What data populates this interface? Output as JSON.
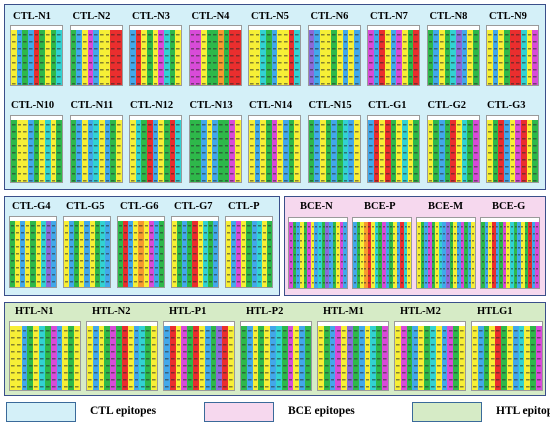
{
  "colors": {
    "ctl_bg": "#d4f0f8",
    "bce_bg": "#f6d8ee",
    "htl_bg": "#d6ebc6",
    "panel_border": "#3a4f8a",
    "residue_palette": {
      "Y": "#f7ef36",
      "B": "#42a8ea",
      "G": "#2eb84a",
      "R": "#ea2e2e",
      "M": "#d84bd8",
      "C": "#32d2d2",
      "O": "#f59a2e",
      "P": "#f4a6c8",
      "V": "#8a6ad8",
      "W": "#f4f4f4"
    }
  },
  "ctl_row1": [
    {
      "label": "CTL-N1",
      "cols": "YBGBRGYGC"
    },
    {
      "label": "CTL-N2",
      "cols": "GBYMBYYRR"
    },
    {
      "label": "CTL-N3",
      "cols": "BRYGYMCGY"
    },
    {
      "label": "CTL-N4",
      "cols": "MMYGGOGRR"
    },
    {
      "label": "CTL-N5",
      "cols": "YYCGBYYRC"
    },
    {
      "label": "CTL-N6",
      "cols": "VBYYGYBYB"
    },
    {
      "label": "CTL-N7",
      "cols": "MBRYBMYGR"
    },
    {
      "label": "CTL-N8",
      "cols": "GBYGCVBYG"
    },
    {
      "label": "CTL-N9",
      "cols": "YBYGRRCYM"
    }
  ],
  "ctl_row2": [
    {
      "label": "CTL-N10",
      "cols": "GYYBGYCYG"
    },
    {
      "label": "CTL-N11",
      "cols": "GBYBCYBGY"
    },
    {
      "label": "CTL-N12",
      "cols": "YCGRBYGRC"
    },
    {
      "label": "CTL-N13",
      "cols": "GGBYBGGMY"
    },
    {
      "label": "CTL-N14",
      "cols": "YBYGMYBGY"
    },
    {
      "label": "CTL-N15",
      "cols": "GBYGBGCBY"
    },
    {
      "label": "CTL-G1",
      "cols": "BRYRGYCYG"
    },
    {
      "label": "CTL-G2",
      "cols": "YGBGRYCGM"
    },
    {
      "label": "CTL-G3",
      "cols": "YGRBYMRYG"
    }
  ],
  "ctl_row3": [
    {
      "label": "CTL-G4",
      "cols": "GYBYGYCVB"
    },
    {
      "label": "CTL-G5",
      "cols": "YBGYBYGCB"
    },
    {
      "label": "CTL-G6",
      "cols": "GRBYOYMBG"
    },
    {
      "label": "CTL-G7",
      "cols": "YGBGRYCGB"
    },
    {
      "label": "CTL-P",
      "cols": "YBMYGBCYG"
    }
  ],
  "bce": [
    {
      "label": "BCE-N",
      "cols": "MGBYGMYBCGVBGYMB"
    },
    {
      "label": "BCE-P",
      "cols": "BGYORYCGMBGYBRCY"
    },
    {
      "label": "BCE-M",
      "cols": "YGBMGYCBVGYBMGBY"
    },
    {
      "label": "BCE-G",
      "cols": "GBYRBGMYCGBYGRBM"
    }
  ],
  "htl": [
    {
      "label": "HTL-N1",
      "cols": "YYBGYCGMBYGY"
    },
    {
      "label": "HTL-N2",
      "cols": "YBYGMGRYBCGY"
    },
    {
      "label": "HTL-P1",
      "cols": "BRYMGRYBGVRY"
    },
    {
      "label": "HTL-P2",
      "cols": "GBYGYBCGMYBG"
    },
    {
      "label": "HTL-M1",
      "cols": "YGBMYVGBYCGM"
    },
    {
      "label": "HTL-M2",
      "cols": "YMGBYGCYBMGY"
    },
    {
      "label": "HTLG1",
      "cols": "YBGYRGYBCYGM"
    }
  ],
  "legend": [
    {
      "label": "CTL epitopes",
      "color": "#d4f0f8"
    },
    {
      "label": "BCE epitopes",
      "color": "#f6d8ee"
    },
    {
      "label": "HTL epitopes",
      "color": "#d6ebc6"
    }
  ]
}
